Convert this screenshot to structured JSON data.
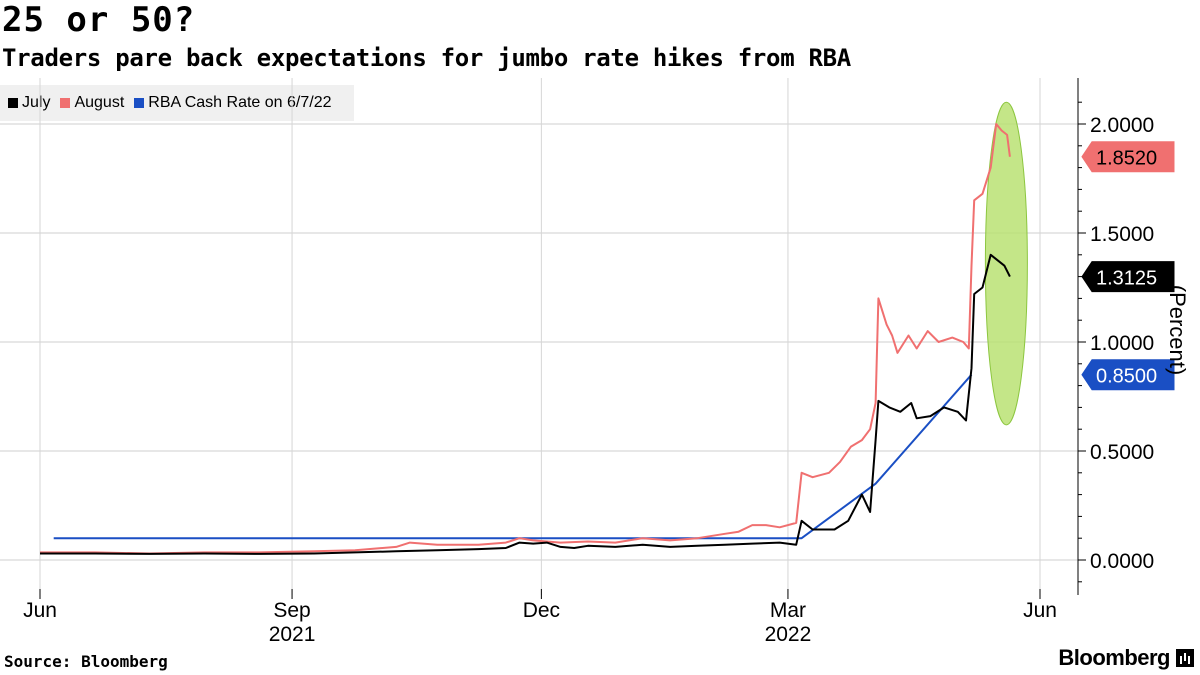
{
  "header": {
    "title": "25 or 50?",
    "subtitle": "Traders pare back expectations for jumbo rate hikes from RBA"
  },
  "footer": {
    "source": "Source: Bloomberg",
    "brand": "Bloomberg"
  },
  "colors": {
    "july": "#000000",
    "august": "#f07070",
    "rba": "#1a4fc4",
    "highlight": "#b5e06a",
    "grid": "#cccccc"
  },
  "chart_data": {
    "type": "line",
    "title": "25 or 50?",
    "subtitle": "Traders pare back expectations for jumbo rate hikes from RBA",
    "ylabel": "(Percent)",
    "ylim": [
      -0.15,
      2.2
    ],
    "yticks": [
      "0.0000",
      "0.5000",
      "1.0000",
      "1.5000",
      "2.0000"
    ],
    "ytick_values": [
      0,
      0.5,
      1.0,
      1.5,
      2.0
    ],
    "xlim_days": [
      0,
      358
    ],
    "xticks": [
      {
        "label": "Jun",
        "day": 0
      },
      {
        "label": "Sep",
        "day": 92,
        "year": "2021"
      },
      {
        "label": "Dec",
        "day": 183
      },
      {
        "label": "Mar",
        "day": 273,
        "year": "2022"
      },
      {
        "label": "Jun",
        "day": 365
      }
    ],
    "x_note": "x values are days since 2021-06-01",
    "legend": [
      "July",
      "August",
      "RBA Cash Rate on 6/7/22"
    ],
    "series": [
      {
        "name": "July",
        "last_value_label": "1.3125",
        "points": [
          [
            0,
            0.03
          ],
          [
            20,
            0.03
          ],
          [
            40,
            0.028
          ],
          [
            60,
            0.03
          ],
          [
            80,
            0.028
          ],
          [
            100,
            0.03
          ],
          [
            115,
            0.035
          ],
          [
            130,
            0.04
          ],
          [
            145,
            0.045
          ],
          [
            160,
            0.05
          ],
          [
            170,
            0.055
          ],
          [
            175,
            0.08
          ],
          [
            180,
            0.075
          ],
          [
            185,
            0.08
          ],
          [
            190,
            0.06
          ],
          [
            195,
            0.055
          ],
          [
            200,
            0.065
          ],
          [
            210,
            0.06
          ],
          [
            220,
            0.07
          ],
          [
            230,
            0.06
          ],
          [
            240,
            0.065
          ],
          [
            250,
            0.07
          ],
          [
            260,
            0.075
          ],
          [
            270,
            0.08
          ],
          [
            276,
            0.07
          ],
          [
            278,
            0.18
          ],
          [
            282,
            0.14
          ],
          [
            290,
            0.14
          ],
          [
            295,
            0.18
          ],
          [
            300,
            0.3
          ],
          [
            303,
            0.22
          ],
          [
            305,
            0.55
          ],
          [
            306,
            0.73
          ],
          [
            310,
            0.7
          ],
          [
            314,
            0.68
          ],
          [
            318,
            0.72
          ],
          [
            320,
            0.65
          ],
          [
            325,
            0.66
          ],
          [
            330,
            0.7
          ],
          [
            335,
            0.68
          ],
          [
            338,
            0.64
          ],
          [
            340,
            0.88
          ],
          [
            341,
            1.22
          ],
          [
            344,
            1.25
          ],
          [
            347,
            1.4
          ],
          [
            349,
            1.38
          ],
          [
            352,
            1.35
          ],
          [
            354,
            1.3
          ]
        ]
      },
      {
        "name": "August",
        "last_value_label": "1.8520",
        "points": [
          [
            0,
            0.035
          ],
          [
            20,
            0.035
          ],
          [
            40,
            0.03
          ],
          [
            60,
            0.035
          ],
          [
            80,
            0.035
          ],
          [
            100,
            0.04
          ],
          [
            115,
            0.045
          ],
          [
            130,
            0.06
          ],
          [
            135,
            0.08
          ],
          [
            145,
            0.07
          ],
          [
            160,
            0.07
          ],
          [
            170,
            0.08
          ],
          [
            175,
            0.1
          ],
          [
            180,
            0.09
          ],
          [
            190,
            0.08
          ],
          [
            200,
            0.085
          ],
          [
            210,
            0.08
          ],
          [
            220,
            0.1
          ],
          [
            230,
            0.09
          ],
          [
            240,
            0.1
          ],
          [
            250,
            0.12
          ],
          [
            255,
            0.13
          ],
          [
            260,
            0.16
          ],
          [
            265,
            0.16
          ],
          [
            270,
            0.15
          ],
          [
            276,
            0.17
          ],
          [
            278,
            0.4
          ],
          [
            282,
            0.38
          ],
          [
            288,
            0.4
          ],
          [
            292,
            0.45
          ],
          [
            296,
            0.52
          ],
          [
            300,
            0.55
          ],
          [
            303,
            0.6
          ],
          [
            305,
            0.72
          ],
          [
            306,
            1.2
          ],
          [
            309,
            1.08
          ],
          [
            311,
            1.03
          ],
          [
            313,
            0.95
          ],
          [
            317,
            1.03
          ],
          [
            320,
            0.97
          ],
          [
            324,
            1.05
          ],
          [
            328,
            1.0
          ],
          [
            333,
            1.02
          ],
          [
            337,
            1.0
          ],
          [
            339,
            0.97
          ],
          [
            340,
            1.35
          ],
          [
            341,
            1.65
          ],
          [
            344,
            1.68
          ],
          [
            347,
            1.8
          ],
          [
            349,
            2.0
          ],
          [
            351,
            1.97
          ],
          [
            353,
            1.95
          ],
          [
            354,
            1.85
          ]
        ]
      },
      {
        "name": "RBA Cash Rate on 6/7/22",
        "last_value_label": "0.8500",
        "points": [
          [
            5,
            0.1
          ],
          [
            278,
            0.1
          ],
          [
            305,
            0.35
          ],
          [
            340,
            0.85
          ]
        ]
      }
    ],
    "annotation": "highlight ellipse around latest readings"
  }
}
